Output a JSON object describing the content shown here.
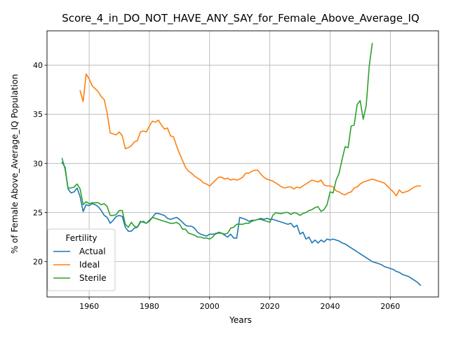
{
  "chart_data": {
    "type": "line",
    "title": "Score_4_in_DO_NOT_HAVE_ANY_SAY_for_Female_Above_Average_IQ",
    "xlabel": "Years",
    "ylabel": "% of Female Above_Average_IQ Population",
    "xlim": [
      1946,
      2076
    ],
    "ylim": [
      16.4,
      43.5
    ],
    "xticks": [
      1960,
      1980,
      2000,
      2020,
      2040,
      2060
    ],
    "yticks": [
      20,
      25,
      30,
      35,
      40
    ],
    "grid": true,
    "legend": {
      "title": "Fertility",
      "position": "lower-left"
    },
    "series": [
      {
        "name": "Actual",
        "color": "#1f77b4",
        "x": [
          1951,
          1952,
          1953,
          1954,
          1955,
          1956,
          1957,
          1958,
          1959,
          1960,
          1961,
          1962,
          1963,
          1964,
          1965,
          1966,
          1967,
          1968,
          1969,
          1970,
          1971,
          1972,
          1973,
          1974,
          1975,
          1976,
          1977,
          1978,
          1979,
          1980,
          1981,
          1982,
          1983,
          1984,
          1985,
          1986,
          1987,
          1988,
          1989,
          1990,
          1991,
          1992,
          1993,
          1994,
          1995,
          1996,
          1997,
          1998,
          1999,
          2000,
          2001,
          2002,
          2003,
          2004,
          2005,
          2006,
          2007,
          2008,
          2009,
          2010,
          2011,
          2012,
          2013,
          2014,
          2015,
          2016,
          2017,
          2018,
          2019,
          2020,
          2021,
          2022,
          2023,
          2024,
          2025,
          2026,
          2027,
          2028,
          2029,
          2030,
          2031,
          2032,
          2033,
          2034,
          2035,
          2036,
          2037,
          2038,
          2039,
          2040,
          2041,
          2042,
          2043,
          2044,
          2045,
          2046,
          2047,
          2048,
          2049,
          2050,
          2051,
          2052,
          2053,
          2054,
          2055,
          2056,
          2057,
          2058,
          2059,
          2060,
          2061,
          2062,
          2063,
          2064,
          2065,
          2066,
          2067,
          2068,
          2069,
          2070
        ],
        "y": [
          30.1,
          29.6,
          27.4,
          27.0,
          27.1,
          27.5,
          26.6,
          25.1,
          25.8,
          25.7,
          25.9,
          25.8,
          25.6,
          25.2,
          24.7,
          24.5,
          23.9,
          24.2,
          24.6,
          24.7,
          24.6,
          23.5,
          23.1,
          23.1,
          23.4,
          23.5,
          24.0,
          24.1,
          23.9,
          24.2,
          24.5,
          24.9,
          24.9,
          24.8,
          24.7,
          24.4,
          24.3,
          24.4,
          24.5,
          24.3,
          24.0,
          23.7,
          23.6,
          23.6,
          23.4,
          23.0,
          22.8,
          22.7,
          22.6,
          22.8,
          22.8,
          22.8,
          23.0,
          22.9,
          22.7,
          22.5,
          22.8,
          22.4,
          22.4,
          24.5,
          24.4,
          24.3,
          24.1,
          24.2,
          24.2,
          24.3,
          24.4,
          24.3,
          24.4,
          24.3,
          24.3,
          24.2,
          24.1,
          24.0,
          23.9,
          23.8,
          23.9,
          23.5,
          23.7,
          22.8,
          23.0,
          22.3,
          22.5,
          21.9,
          22.2,
          21.9,
          22.2,
          22.0,
          22.3,
          22.2,
          22.3,
          22.2,
          22.1,
          21.9,
          21.8,
          21.6,
          21.4,
          21.2,
          21.0,
          20.8,
          20.6,
          20.4,
          20.2,
          20.0,
          19.9,
          19.8,
          19.7,
          19.5,
          19.4,
          19.3,
          19.2,
          19.0,
          18.9,
          18.7,
          18.6,
          18.5,
          18.3,
          18.1,
          17.9,
          17.6
        ]
      },
      {
        "name": "Ideal",
        "color": "#ff7f0e",
        "x": [
          1957,
          1958,
          1959,
          1960,
          1961,
          1962,
          1963,
          1964,
          1965,
          1966,
          1967,
          1968,
          1969,
          1970,
          1971,
          1972,
          1973,
          1974,
          1975,
          1976,
          1977,
          1978,
          1979,
          1980,
          1981,
          1982,
          1983,
          1984,
          1985,
          1986,
          1987,
          1988,
          1989,
          1990,
          1991,
          1992,
          1993,
          1994,
          1995,
          1996,
          1997,
          1998,
          1999,
          2000,
          2001,
          2002,
          2003,
          2004,
          2005,
          2006,
          2007,
          2008,
          2009,
          2010,
          2011,
          2012,
          2013,
          2014,
          2015,
          2016,
          2017,
          2018,
          2019,
          2020,
          2021,
          2022,
          2023,
          2024,
          2025,
          2026,
          2027,
          2028,
          2029,
          2030,
          2031,
          2032,
          2033,
          2034,
          2035,
          2036,
          2037,
          2038,
          2039,
          2040,
          2041,
          2042,
          2043,
          2044,
          2045,
          2046,
          2047,
          2048,
          2049,
          2050,
          2051,
          2052,
          2053,
          2054,
          2055,
          2056,
          2057,
          2058,
          2059,
          2060,
          2061,
          2062,
          2063,
          2064,
          2065,
          2066,
          2067,
          2068,
          2069,
          2070
        ],
        "y": [
          37.4,
          36.3,
          39.1,
          38.6,
          37.9,
          37.6,
          37.3,
          36.8,
          36.5,
          35.1,
          33.1,
          33.0,
          32.9,
          33.2,
          32.8,
          31.5,
          31.6,
          31.8,
          32.2,
          32.3,
          33.2,
          33.3,
          33.2,
          33.8,
          34.3,
          34.2,
          34.4,
          33.9,
          33.5,
          33.6,
          32.8,
          32.7,
          31.8,
          31.0,
          30.3,
          29.6,
          29.2,
          29.0,
          28.7,
          28.5,
          28.3,
          28.0,
          27.9,
          27.7,
          28.0,
          28.3,
          28.6,
          28.6,
          28.4,
          28.5,
          28.3,
          28.4,
          28.3,
          28.4,
          28.6,
          29.0,
          29.0,
          29.2,
          29.3,
          29.3,
          28.9,
          28.6,
          28.4,
          28.3,
          28.2,
          28.0,
          27.8,
          27.6,
          27.5,
          27.6,
          27.6,
          27.4,
          27.6,
          27.5,
          27.7,
          27.9,
          28.1,
          28.3,
          28.2,
          28.1,
          28.3,
          27.8,
          27.7,
          27.7,
          27.6,
          27.2,
          27.1,
          26.9,
          26.8,
          27.0,
          27.1,
          27.5,
          27.6,
          27.9,
          28.1,
          28.2,
          28.3,
          28.4,
          28.3,
          28.2,
          28.1,
          28.0,
          27.7,
          27.4,
          27.1,
          26.7,
          27.3,
          27.0,
          27.1,
          27.2,
          27.4,
          27.6,
          27.7,
          27.7
        ]
      },
      {
        "name": "Sterile",
        "color": "#2ca02c",
        "x": [
          1951,
          1952,
          1953,
          1954,
          1955,
          1956,
          1957,
          1958,
          1959,
          1960,
          1961,
          1962,
          1963,
          1964,
          1965,
          1966,
          1967,
          1968,
          1969,
          1970,
          1971,
          1972,
          1973,
          1974,
          1975,
          1976,
          1977,
          1978,
          1979,
          1980,
          1981,
          1982,
          1983,
          1984,
          1985,
          1986,
          1987,
          1988,
          1989,
          1990,
          1991,
          1992,
          1993,
          1994,
          1995,
          1996,
          1997,
          1998,
          1999,
          2000,
          2001,
          2002,
          2003,
          2004,
          2005,
          2006,
          2007,
          2008,
          2009,
          2010,
          2011,
          2012,
          2013,
          2014,
          2015,
          2016,
          2017,
          2018,
          2019,
          2020,
          2021,
          2022,
          2023,
          2024,
          2025,
          2026,
          2027,
          2028,
          2029,
          2030,
          2031,
          2032,
          2033,
          2034,
          2035,
          2036,
          2037,
          2038,
          2039,
          2040,
          2041,
          2042,
          2043,
          2044,
          2045,
          2046,
          2047,
          2048,
          2049,
          2050,
          2051,
          2052,
          2053,
          2054
        ],
        "y": [
          30.5,
          29.4,
          27.5,
          27.5,
          27.6,
          27.9,
          27.4,
          25.8,
          26.1,
          25.9,
          26.0,
          26.0,
          26.0,
          25.8,
          25.9,
          25.6,
          24.7,
          24.7,
          24.8,
          25.2,
          25.2,
          23.8,
          23.5,
          24.0,
          23.6,
          23.5,
          24.1,
          24.0,
          23.9,
          24.1,
          24.5,
          24.4,
          24.3,
          24.2,
          24.1,
          24.0,
          23.9,
          23.9,
          24.0,
          23.8,
          23.3,
          23.3,
          22.9,
          22.8,
          22.7,
          22.5,
          22.5,
          22.4,
          22.4,
          22.3,
          22.5,
          22.9,
          22.9,
          22.9,
          22.8,
          22.9,
          23.4,
          23.5,
          23.8,
          23.8,
          23.8,
          23.9,
          23.9,
          24.1,
          24.2,
          24.3,
          24.3,
          24.2,
          24.1,
          24.0,
          24.7,
          25.0,
          24.9,
          24.9,
          25.0,
          25.0,
          24.8,
          25.0,
          24.9,
          24.7,
          24.9,
          25.0,
          25.2,
          25.3,
          25.5,
          25.6,
          25.1,
          25.3,
          25.8,
          27.1,
          27.0,
          28.3,
          29.0,
          30.4,
          31.7,
          31.6,
          33.8,
          33.9,
          36.0,
          36.4,
          34.5,
          35.9,
          39.9,
          42.2
        ]
      }
    ]
  }
}
